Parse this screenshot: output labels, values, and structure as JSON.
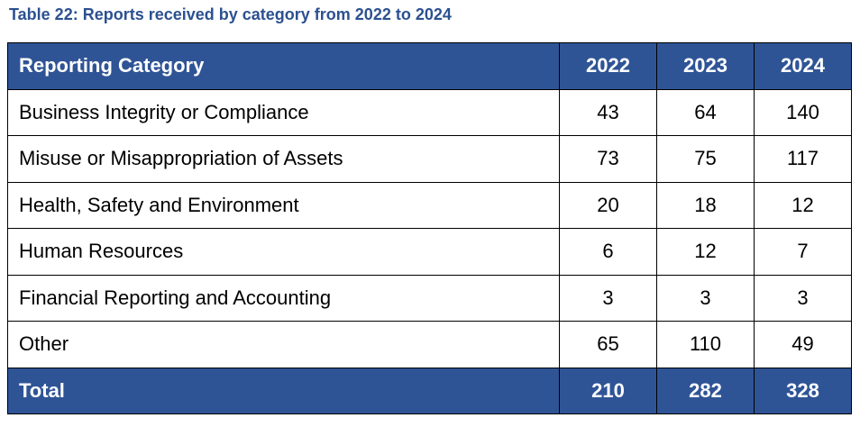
{
  "caption": "Table 22: Reports received by category from 2022 to 2024",
  "colors": {
    "header_bg": "#2f5496",
    "caption_text": "#2c5190"
  },
  "table": {
    "headers": [
      "Reporting Category",
      "2022",
      "2023",
      "2024"
    ],
    "rows": [
      {
        "category": "Business Integrity or Compliance",
        "y2022": "43",
        "y2023": "64",
        "y2024": "140"
      },
      {
        "category": "Misuse or Misappropriation of Assets",
        "y2022": "73",
        "y2023": "75",
        "y2024": "117"
      },
      {
        "category": "Health, Safety and Environment",
        "y2022": "20",
        "y2023": "18",
        "y2024": "12"
      },
      {
        "category": "Human Resources",
        "y2022": "6",
        "y2023": "12",
        "y2024": "7"
      },
      {
        "category": "Financial Reporting and Accounting",
        "y2022": "3",
        "y2023": "3",
        "y2024": "3"
      },
      {
        "category": "Other",
        "y2022": "65",
        "y2023": "110",
        "y2024": "49"
      }
    ],
    "total": {
      "label": "Total",
      "y2022": "210",
      "y2023": "282",
      "y2024": "328"
    }
  }
}
